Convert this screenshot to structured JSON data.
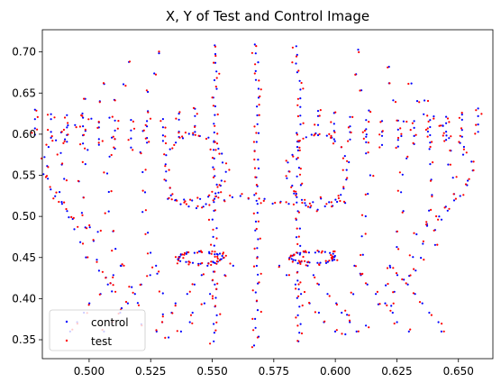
{
  "chart_data": {
    "type": "scatter",
    "title": "X, Y of Test and Control Image",
    "xlabel": "",
    "ylabel": "",
    "xlim": [
      0.481,
      0.664
    ],
    "ylim": [
      0.327,
      0.727
    ],
    "grid": false,
    "legend_position": "lower-left",
    "x_ticks": [
      "0.500",
      "0.525",
      "0.550",
      "0.575",
      "0.600",
      "0.625",
      "0.650"
    ],
    "x_tick_values": [
      0.5,
      0.525,
      0.55,
      0.575,
      0.6,
      0.625,
      0.65
    ],
    "y_ticks": [
      "0.35",
      "0.40",
      "0.45",
      "0.50",
      "0.55",
      "0.60",
      "0.65",
      "0.70"
    ],
    "y_tick_values": [
      0.35,
      0.4,
      0.45,
      0.5,
      0.55,
      0.6,
      0.65,
      0.7
    ],
    "series": [
      {
        "name": "control",
        "color": "#0000ff"
      },
      {
        "name": "test",
        "color": "#ff0000"
      }
    ],
    "structure": {
      "center_x": 0.568,
      "vertical_lines": [
        {
          "x": 0.568,
          "y_min": 0.343,
          "y_max": 0.709
        },
        {
          "x": 0.551,
          "y_min": 0.348,
          "y_max": 0.708
        },
        {
          "x": 0.585,
          "y_min": 0.348,
          "y_max": 0.707
        }
      ],
      "outer_curves": [
        {
          "x_left": 0.487,
          "x_right": 0.66,
          "y_top": 0.61,
          "y_bottom": 0.48
        },
        {
          "x_left": 0.493,
          "x_right": 0.652,
          "y_top": 0.64,
          "y_bottom": 0.42
        },
        {
          "x_left": 0.5,
          "x_right": 0.642,
          "y_top": 0.66,
          "y_bottom": 0.39
        },
        {
          "x_left": 0.509,
          "x_right": 0.63,
          "y_top": 0.685,
          "y_bottom": 0.37
        },
        {
          "x_left": 0.522,
          "x_right": 0.614,
          "y_top": 0.7,
          "y_bottom": 0.355
        }
      ],
      "upper_loops": [
        {
          "cx": 0.543,
          "cy": 0.555,
          "rx": 0.012,
          "ry": 0.045
        },
        {
          "cx": 0.593,
          "cy": 0.555,
          "rx": 0.012,
          "ry": 0.045
        }
      ],
      "eyes": [
        {
          "cx": 0.545,
          "cy": 0.45,
          "rx": 0.009,
          "ry": 0.007
        },
        {
          "cx": 0.591,
          "cy": 0.45,
          "rx": 0.009,
          "ry": 0.007
        }
      ],
      "bridge_y": 0.52
    }
  }
}
